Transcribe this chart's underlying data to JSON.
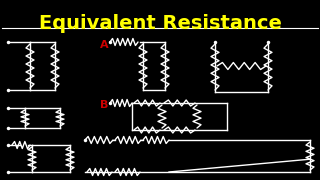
{
  "title": "Equivalent Resistance",
  "title_color": "#FFFF00",
  "title_fontsize": 14,
  "bg_color": "#000000",
  "line_color": "#FFFFFF",
  "label_a_color": "#CC0000",
  "label_b_color": "#CC0000",
  "figsize": [
    3.2,
    1.8
  ],
  "dpi": 100
}
